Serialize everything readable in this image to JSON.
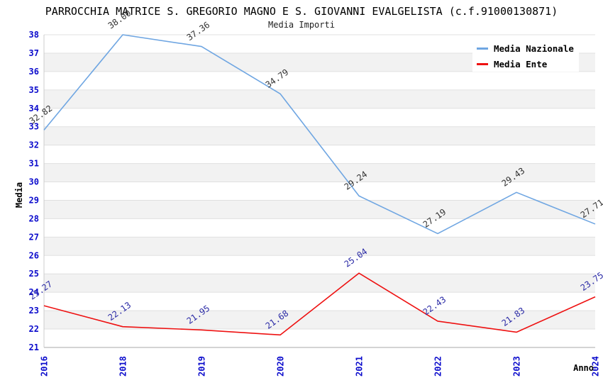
{
  "chart_data": {
    "type": "line",
    "title": "PARROCCHIA MATRICE S. GREGORIO MAGNO E S. GIOVANNI EVALGELISTA (c.f.91000130871)",
    "subtitle": "Media Importi",
    "xlabel": "Anno",
    "ylabel": "Media",
    "x": [
      "2016",
      "2018",
      "2019",
      "2020",
      "2021",
      "2022",
      "2023",
      "2024"
    ],
    "series": [
      {
        "name": "Media Nazionale",
        "color": "#6FA6E2",
        "label_color": "#333333",
        "values": [
          32.82,
          38.0,
          37.36,
          34.79,
          29.24,
          27.19,
          29.43,
          27.71
        ]
      },
      {
        "name": "Media Ente",
        "color": "#EE1111",
        "label_color": "#2B2BA6",
        "values": [
          23.27,
          22.13,
          21.95,
          21.68,
          25.04,
          22.43,
          21.83,
          23.75
        ]
      }
    ],
    "ylim": [
      21,
      38
    ],
    "ytick_step": 1,
    "grid": "horizontal gridlines with alternating white/gray bands",
    "legend_position": "top-right",
    "colors": {
      "band": "#F2F2F2",
      "grid": "#E0E0E0",
      "axis": "#AAAAAA",
      "tick": "#0B0BCC",
      "background": "#FFFFFF"
    }
  }
}
